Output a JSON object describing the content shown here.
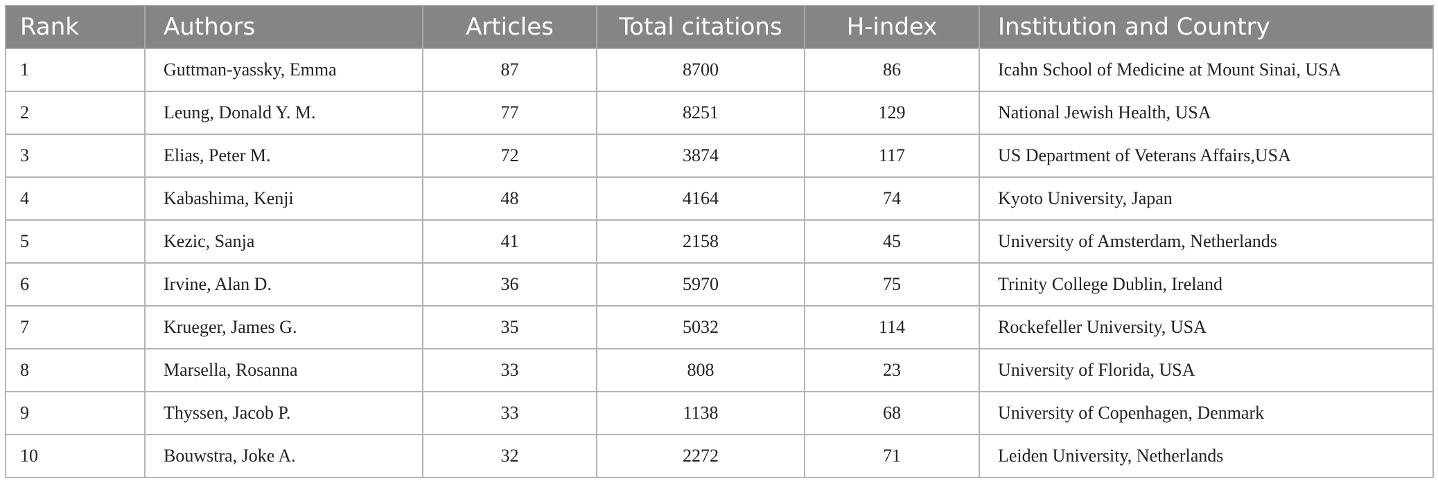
{
  "table": {
    "header": [
      "Rank",
      "Authors",
      "Articles",
      "Total citations",
      "H-index",
      "Institution and Country"
    ],
    "rows": [
      [
        1,
        "Guttman-yassky, Emma",
        87,
        8700,
        86,
        "Icahn School of Medicine at Mount Sinai, USA"
      ],
      [
        2,
        "Leung, Donald Y. M.",
        77,
        8251,
        129,
        "National Jewish Health, USA"
      ],
      [
        3,
        "Elias, Peter M.",
        72,
        3874,
        117,
        "US Department of Veterans Affairs,USA"
      ],
      [
        4,
        "Kabashima, Kenji",
        48,
        4164,
        74,
        "Kyoto University, Japan"
      ],
      [
        5,
        "Kezic, Sanja",
        41,
        2158,
        45,
        "University of Amsterdam, Netherlands"
      ],
      [
        6,
        "Irvine, Alan D.",
        36,
        5970,
        75,
        "Trinity College Dublin, Ireland"
      ],
      [
        7,
        "Krueger, James G.",
        35,
        5032,
        114,
        "Rockefeller University, USA"
      ],
      [
        8,
        "Marsella, Rosanna",
        33,
        808,
        23,
        "University of Florida, USA"
      ],
      [
        9,
        "Thyssen, Jacob P.",
        33,
        1138,
        68,
        "University of Copenhagen, Denmark"
      ],
      [
        10,
        "Bouwstra, Joke A.",
        32,
        2272,
        71,
        "Leiden University, Netherlands"
      ]
    ]
  }
}
